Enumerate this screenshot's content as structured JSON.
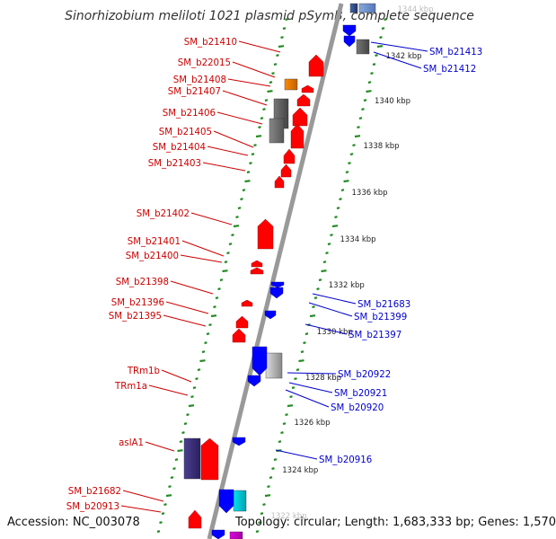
{
  "title": "Sinorhizobium meliloti 1021 plasmid pSymB, complete sequence",
  "accession": "Accession: NC_003078",
  "topology": "Topology: circular; Length: 1,683,333 bp; Genes: 1,570",
  "colors": {
    "forward_gene": "#ff0000",
    "reverse_gene": "#0000ff",
    "forward_label": "#cc0000",
    "reverse_label": "#0000cc",
    "backbone": "#999999",
    "tick_dots": "#228b22",
    "orange_gene": "#ff8c00",
    "purple_gene": "#4b3f8f",
    "gray_gene": "#777777",
    "cyan_gene": "#00e5ee",
    "magenta_gene": "#e000e0"
  },
  "scale_labels": [
    "1344 kbp",
    "1342 kbp",
    "1340 kbp",
    "1338 kbp",
    "1336 kbp",
    "1334 kbp",
    "1332 kbp",
    "1330 kbp",
    "1328 kbp",
    "1326 kbp",
    "1324 kbp",
    "1322 kbp"
  ],
  "left_labels": [
    "SM_b21410",
    "SM_b22015",
    "SM_b21408",
    "SM_b21407",
    "SM_b21406",
    "SM_b21405",
    "SM_b21404",
    "SM_b21403",
    "SM_b21402",
    "SM_b21401",
    "SM_b21400",
    "SM_b21398",
    "SM_b21396",
    "SM_b21395",
    "TRm1b",
    "TRm1a",
    "aslA1",
    "SM_b21682",
    "SM_b20913"
  ],
  "right_labels": [
    "SM_b21413",
    "SM_b21412",
    "SM_b21683",
    "SM_b21399",
    "SM_b21397",
    "SM_b20922",
    "SM_b20921",
    "SM_b20920",
    "SM_b20916"
  ]
}
